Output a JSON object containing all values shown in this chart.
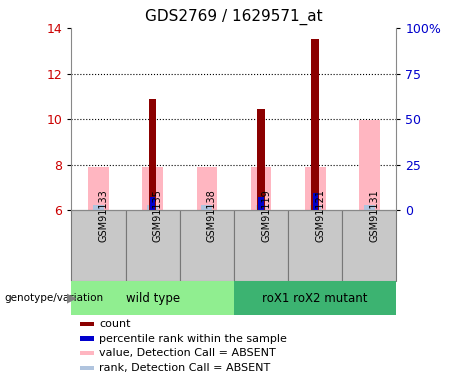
{
  "title": "GDS2769 / 1629571_at",
  "samples": [
    "GSM91133",
    "GSM91135",
    "GSM91138",
    "GSM91119",
    "GSM91121",
    "GSM91131"
  ],
  "ylim_left": [
    6,
    14
  ],
  "ylim_right": [
    0,
    100
  ],
  "yticks_left": [
    6,
    8,
    10,
    12,
    14
  ],
  "yticks_right": [
    0,
    25,
    50,
    75,
    100
  ],
  "yticklabels_right": [
    "0",
    "25",
    "50",
    "75",
    "100%"
  ],
  "count_values": [
    null,
    10.9,
    null,
    10.45,
    13.5,
    null
  ],
  "rank_values": [
    null,
    6.55,
    null,
    6.55,
    6.75,
    null
  ],
  "absent_value_top": [
    7.9,
    7.9,
    7.9,
    7.9,
    7.9,
    9.95
  ],
  "absent_rank_top": [
    6.2,
    6.2,
    6.2,
    6.2,
    6.2,
    6.2
  ],
  "count_color": "#8B0000",
  "rank_color": "#0000CD",
  "absent_value_color": "#FFB6C1",
  "absent_rank_color": "#B0C4DE",
  "background_color": "#FFFFFF",
  "left_tick_color": "#CC0000",
  "right_tick_color": "#0000CC",
  "wt_color": "#90EE90",
  "mut_color": "#3CB371",
  "sample_bg_color": "#C8C8C8",
  "legend_items": [
    {
      "color": "#8B0000",
      "label": "count"
    },
    {
      "color": "#0000CD",
      "label": "percentile rank within the sample"
    },
    {
      "color": "#FFB6C1",
      "label": "value, Detection Call = ABSENT"
    },
    {
      "color": "#B0C4DE",
      "label": "rank, Detection Call = ABSENT"
    }
  ],
  "genotype_label": "genotype/variation"
}
